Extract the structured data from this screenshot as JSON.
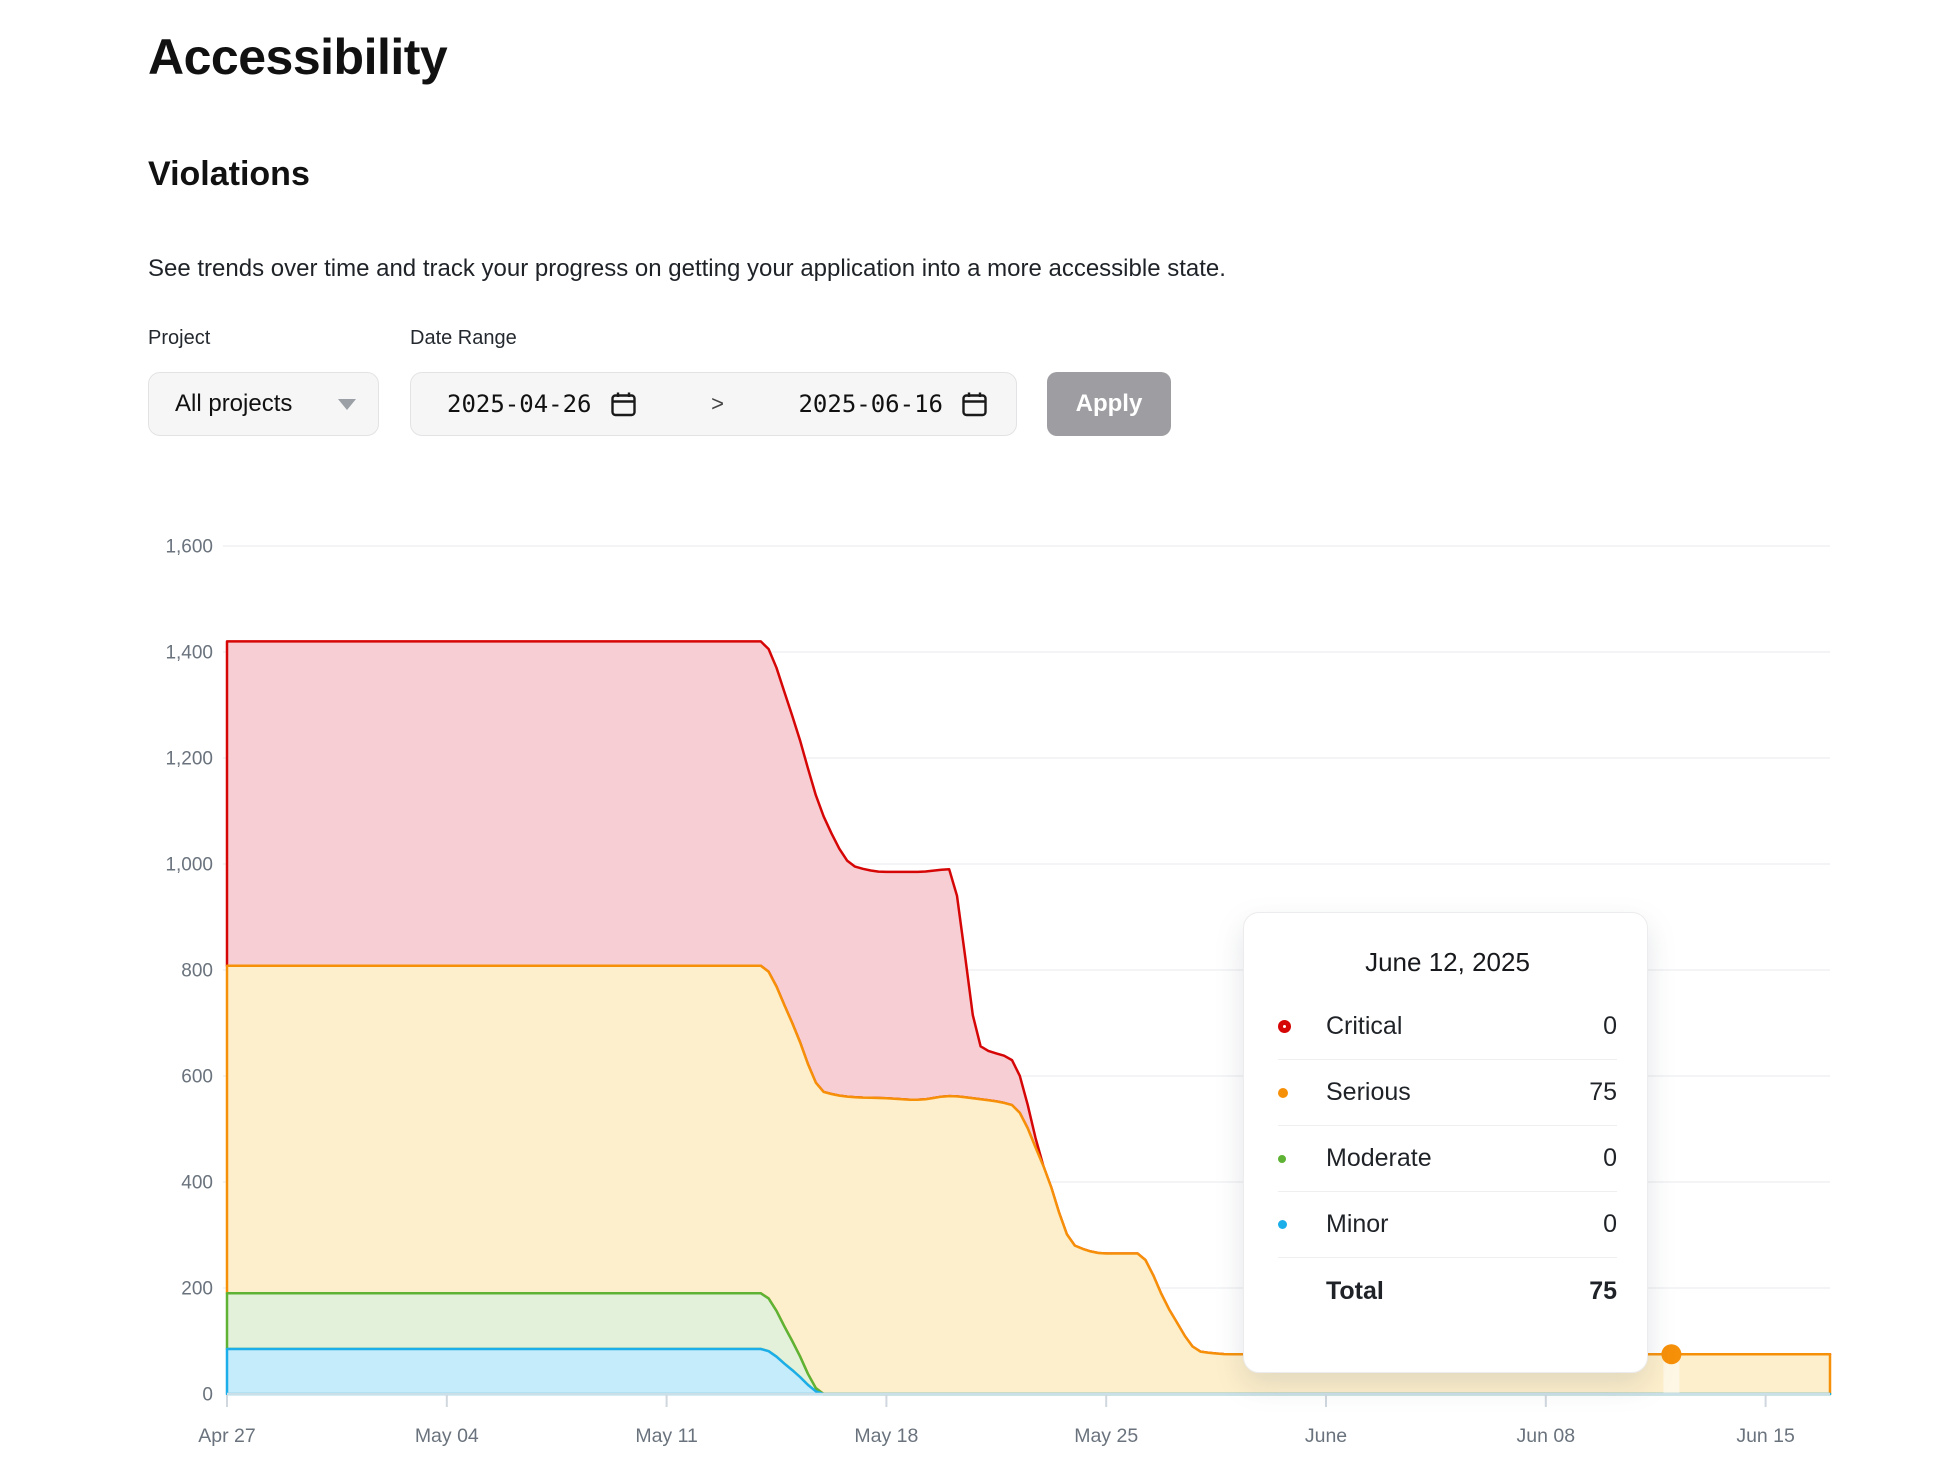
{
  "page": {
    "title": "Accessibility",
    "section_title": "Violations",
    "description": "See trends over time and track your progress on getting your application into a more accessible state."
  },
  "filters": {
    "project_label": "Project",
    "project_value": "All projects",
    "date_range_label": "Date Range",
    "date_start": "2025-04-26",
    "date_end": "2025-06-16",
    "range_separator": ">",
    "apply_label": "Apply"
  },
  "tooltip": {
    "title": "June 12, 2025",
    "rows": [
      {
        "label": "Critical",
        "value": "0",
        "color": "#d60606",
        "marker": "ring-lg"
      },
      {
        "label": "Serious",
        "value": "75",
        "color": "#f79009",
        "marker": "ring-md"
      },
      {
        "label": "Moderate",
        "value": "0",
        "color": "#5eb234",
        "marker": "ring-sm"
      },
      {
        "label": "Minor",
        "value": "0",
        "color": "#1caee8",
        "marker": "dot"
      }
    ],
    "total_label": "Total",
    "total_value": "75"
  },
  "chart_data": {
    "type": "area",
    "stacked": true,
    "grid": true,
    "ylim": [
      0,
      1600
    ],
    "y_axis": {
      "ticks": [
        {
          "value": 0,
          "label": "0"
        },
        {
          "value": 200,
          "label": "200"
        },
        {
          "value": 400,
          "label": "400"
        },
        {
          "value": 600,
          "label": "600"
        },
        {
          "value": 800,
          "label": "800"
        },
        {
          "value": 1000,
          "label": "1,000"
        },
        {
          "value": 1200,
          "label": "1,200"
        },
        {
          "value": 1400,
          "label": "1,400"
        },
        {
          "value": 1600,
          "label": "1,600"
        }
      ]
    },
    "x_axis": {
      "ticks": [
        {
          "day": 0,
          "label": "Apr 27"
        },
        {
          "day": 7,
          "label": "May 04"
        },
        {
          "day": 14,
          "label": "May 11"
        },
        {
          "day": 21,
          "label": "May 18"
        },
        {
          "day": 28,
          "label": "May 25"
        },
        {
          "day": 35,
          "label": "June"
        },
        {
          "day": 42,
          "label": "Jun 08"
        },
        {
          "day": 49,
          "label": "Jun 15"
        }
      ]
    },
    "dates": [
      "2025-04-27",
      "2025-04-28",
      "2025-04-29",
      "2025-04-30",
      "2025-05-01",
      "2025-05-02",
      "2025-05-03",
      "2025-05-04",
      "2025-05-05",
      "2025-05-06",
      "2025-05-07",
      "2025-05-08",
      "2025-05-09",
      "2025-05-10",
      "2025-05-11",
      "2025-05-12",
      "2025-05-13",
      "2025-05-14",
      "2025-05-15",
      "2025-05-16",
      "2025-05-17",
      "2025-05-18",
      "2025-05-19",
      "2025-05-20",
      "2025-05-21",
      "2025-05-22",
      "2025-05-23",
      "2025-05-24",
      "2025-05-25",
      "2025-05-26",
      "2025-05-27",
      "2025-05-28",
      "2025-05-29",
      "2025-05-30",
      "2025-05-31",
      "2025-06-01",
      "2025-06-02",
      "2025-06-03",
      "2025-06-04",
      "2025-06-05",
      "2025-06-06",
      "2025-06-07",
      "2025-06-08",
      "2025-06-09",
      "2025-06-10",
      "2025-06-11",
      "2025-06-12",
      "2025-06-13",
      "2025-06-14",
      "2025-06-15",
      "2025-06-16"
    ],
    "stack_order": [
      "Minor",
      "Moderate",
      "Serious",
      "Critical"
    ],
    "series": [
      {
        "name": "Critical",
        "color": "#d60606",
        "fill": "#f6ced3",
        "values": [
          612,
          612,
          612,
          612,
          612,
          612,
          612,
          612,
          612,
          612,
          612,
          612,
          612,
          612,
          612,
          612,
          612,
          612,
          580,
          520,
          435,
          427,
          430,
          428,
          100,
          85,
          0,
          0,
          0,
          0,
          0,
          0,
          0,
          0,
          0,
          0,
          0,
          0,
          0,
          0,
          0,
          0,
          0,
          0,
          0,
          0,
          0,
          0,
          0,
          0,
          0
        ]
      },
      {
        "name": "Serious",
        "color": "#f79009",
        "fill": "#fdefcb",
        "values": [
          618,
          618,
          618,
          618,
          618,
          618,
          618,
          618,
          618,
          618,
          618,
          618,
          618,
          618,
          618,
          618,
          618,
          618,
          600,
          570,
          560,
          558,
          555,
          562,
          556,
          545,
          430,
          280,
          265,
          265,
          160,
          80,
          75,
          75,
          75,
          75,
          75,
          75,
          75,
          75,
          75,
          75,
          75,
          75,
          75,
          75,
          75,
          75,
          75,
          75,
          75
        ]
      },
      {
        "name": "Moderate",
        "color": "#5eb234",
        "fill": "#e4f1da",
        "values": [
          105,
          105,
          105,
          105,
          105,
          105,
          105,
          105,
          105,
          105,
          105,
          105,
          105,
          105,
          105,
          105,
          105,
          105,
          55,
          0,
          0,
          0,
          0,
          0,
          0,
          0,
          0,
          0,
          0,
          0,
          0,
          0,
          0,
          0,
          0,
          0,
          0,
          0,
          0,
          0,
          0,
          0,
          0,
          0,
          0,
          0,
          0,
          0,
          0,
          0,
          0
        ]
      },
      {
        "name": "Minor",
        "color": "#1caee8",
        "fill": "#c5ecfb",
        "values": [
          85,
          85,
          85,
          85,
          85,
          85,
          85,
          85,
          85,
          85,
          85,
          85,
          85,
          85,
          85,
          85,
          85,
          85,
          45,
          0,
          0,
          0,
          0,
          0,
          0,
          0,
          0,
          0,
          0,
          0,
          0,
          0,
          0,
          0,
          0,
          0,
          0,
          0,
          0,
          0,
          0,
          0,
          0,
          0,
          0,
          0,
          0,
          0,
          0,
          0,
          0
        ]
      }
    ],
    "hover": {
      "day_index": 46,
      "date_label": "June 12, 2025",
      "series": "Serious",
      "value": 75
    },
    "axis_color": "#cbdfe9",
    "grid_color": "#f0f1f3",
    "tick_color": "#d0d7de",
    "label_color": "#6a737d"
  }
}
